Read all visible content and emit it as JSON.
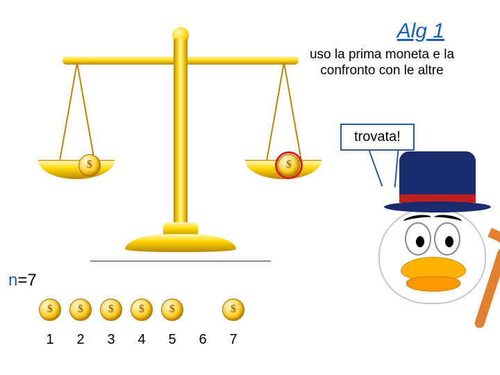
{
  "title": "Alg 1",
  "subtitle": "uso la prima moneta e la confronto con le altre",
  "speech": "trovata!",
  "n_label_prefix": "n",
  "n_label_eq": "=7",
  "coins": {
    "count": 7,
    "visible": [
      true,
      true,
      true,
      true,
      true,
      false,
      true
    ],
    "labels": [
      "1",
      "2",
      "3",
      "4",
      "5",
      "6",
      "7"
    ]
  },
  "colors": {
    "title": "#1a5fb4",
    "speech_border": "#2a5aa0",
    "highlight_ring": "#d02020",
    "gold_light": "#fff6c0",
    "gold_mid": "#ffd700",
    "gold_dark": "#b8860b",
    "hat": "#1a2a6c",
    "hat_band": "#c02020",
    "beak": "#ffb300",
    "cane": "#e08030"
  }
}
